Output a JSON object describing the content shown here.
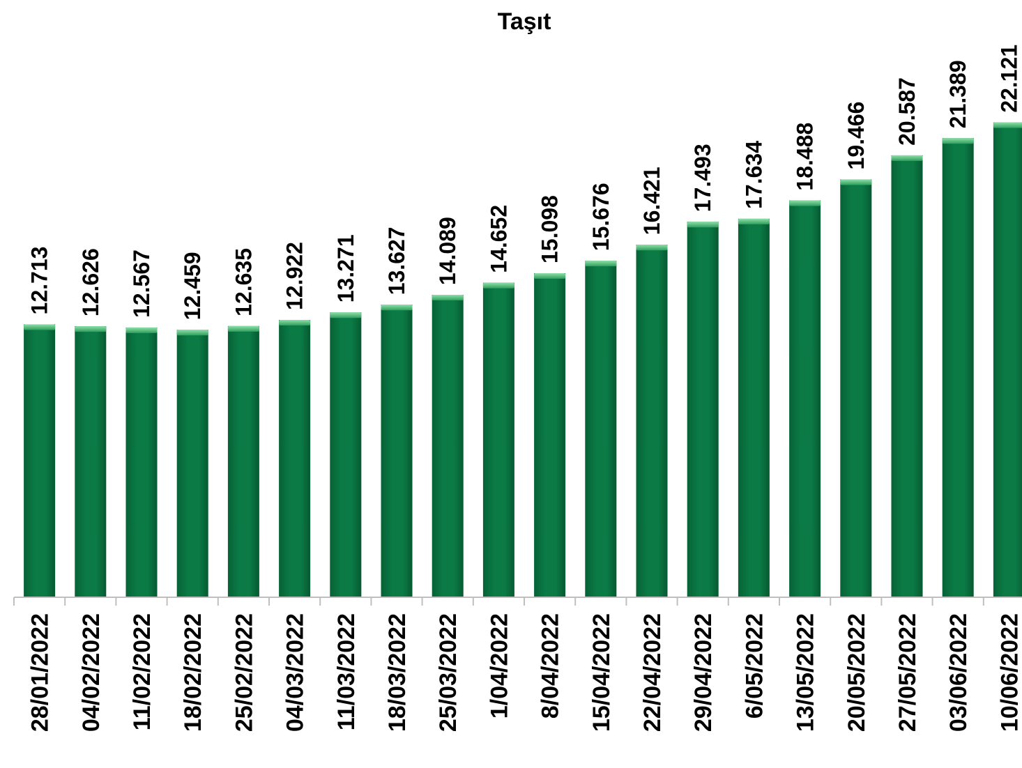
{
  "chart_data": {
    "type": "bar",
    "title": "Taşıt",
    "xlabel": "",
    "ylabel": "",
    "categories": [
      "28/01/2022",
      "04/02/2022",
      "11/02/2022",
      "18/02/2022",
      "25/02/2022",
      "04/03/2022",
      "11/03/2022",
      "18/03/2022",
      "25/03/2022",
      "1/04/2022",
      "8/04/2022",
      "15/04/2022",
      "22/04/2022",
      "29/04/2022",
      "6/05/2022",
      "13/05/2022",
      "20/05/2022",
      "27/05/2022",
      "03/06/2022",
      "10/06/2022"
    ],
    "values": [
      12713,
      12626,
      12567,
      12459,
      12635,
      12922,
      13271,
      13627,
      14089,
      14652,
      15098,
      15676,
      16421,
      17493,
      17634,
      18488,
      19466,
      20587,
      21389,
      22121
    ],
    "data_labels": [
      "12.713",
      "12.626",
      "12.567",
      "12.459",
      "12.635",
      "12.922",
      "13.271",
      "13.627",
      "14.089",
      "14.652",
      "15.098",
      "15.676",
      "16.421",
      "17.493",
      "17.634",
      "18.488",
      "19.466",
      "20.587",
      "21.389",
      "22.121"
    ],
    "ylim": [
      0,
      24000
    ],
    "grid": false,
    "legend": "none",
    "bar_color": "#0b7a45",
    "bar_top_color": "#4fc27e",
    "axis_color": "#bfbfbf"
  }
}
